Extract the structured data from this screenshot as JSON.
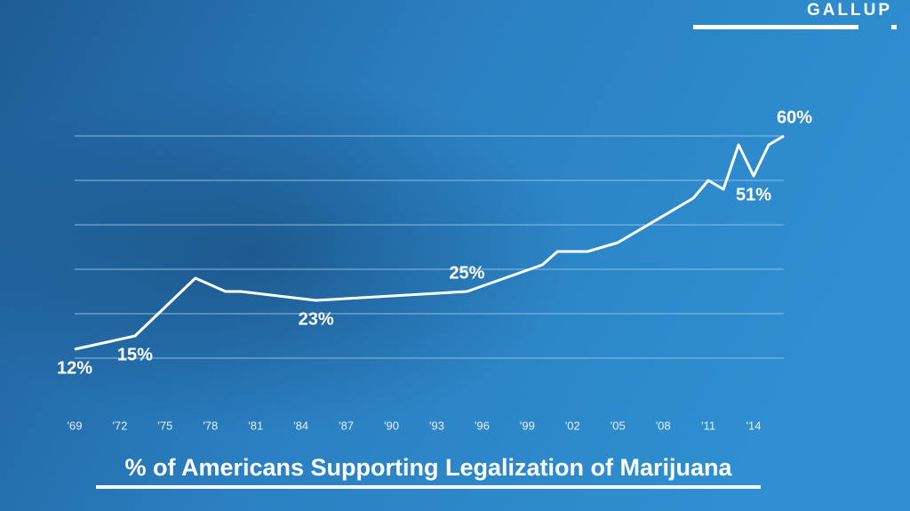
{
  "chart_data": {
    "type": "line",
    "title": "% of Americans Supporting Legalization of Marijuana",
    "source": "GALLUP",
    "x": [
      1969,
      1973,
      1977,
      1979,
      1980,
      1985,
      1995,
      2000,
      2001,
      2003,
      2005,
      2009,
      2010,
      2011,
      2012,
      2013,
      2014,
      2015,
      2016
    ],
    "values": [
      12,
      15,
      28,
      25,
      25,
      23,
      25,
      31,
      34,
      34,
      36,
      44,
      46,
      50,
      48,
      58,
      51,
      58,
      60
    ],
    "value_labels": [
      "12%",
      "15%",
      null,
      null,
      null,
      "23%",
      "25%",
      null,
      null,
      null,
      null,
      null,
      null,
      null,
      null,
      null,
      "51%",
      null,
      "60%"
    ],
    "color": "#ffffff",
    "xlim": [
      1969,
      2016
    ],
    "xticks": [
      {
        "value": 1969,
        "label": "'69"
      },
      {
        "value": 1972,
        "label": "'72"
      },
      {
        "value": 1975,
        "label": "'75"
      },
      {
        "value": 1978,
        "label": "'78"
      },
      {
        "value": 1981,
        "label": "'81"
      },
      {
        "value": 1984,
        "label": "'84"
      },
      {
        "value": 1987,
        "label": "'87"
      },
      {
        "value": 1990,
        "label": "'90"
      },
      {
        "value": 1993,
        "label": "'93"
      },
      {
        "value": 1996,
        "label": "'96"
      },
      {
        "value": 1999,
        "label": "'99"
      },
      {
        "value": 2002,
        "label": "'02"
      },
      {
        "value": 2005,
        "label": "'05"
      },
      {
        "value": 2008,
        "label": "'08"
      },
      {
        "value": 2011,
        "label": "'11"
      },
      {
        "value": 2014,
        "label": "'14"
      }
    ],
    "ylim": [
      10,
      60
    ],
    "yticks": [
      10,
      20,
      30,
      40,
      50,
      60
    ],
    "grid": true
  }
}
